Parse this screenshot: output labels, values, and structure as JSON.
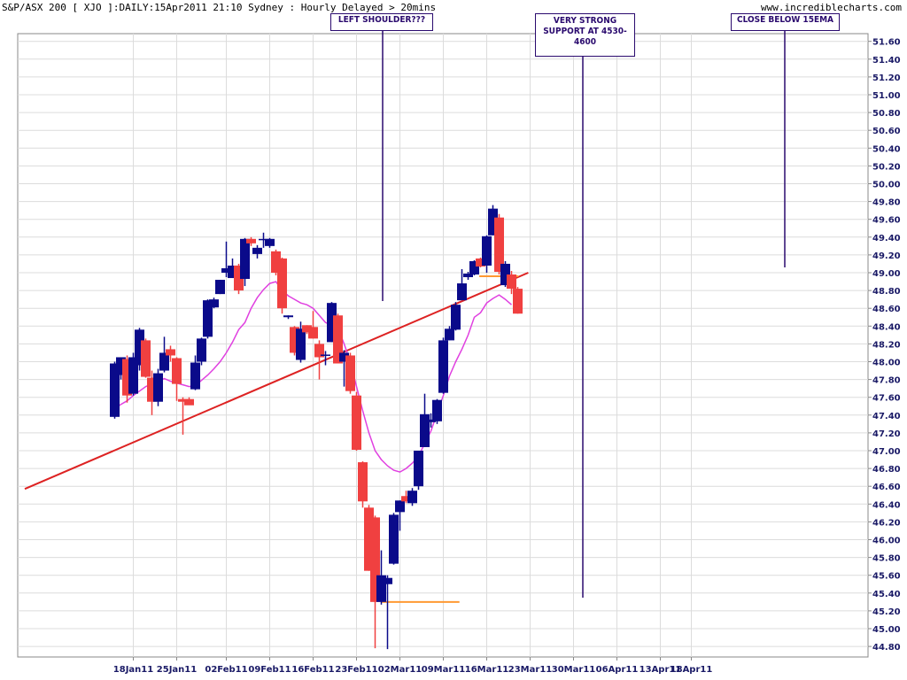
{
  "header": {
    "title": "S&P/ASX 200 [ XJO ]:DAILY:15Apr2011 21:10 Sydney : Hourly Delayed > 20mins",
    "site": "www.incrediblecharts.com"
  },
  "annotations": [
    {
      "id": "left-shoulder",
      "text": "LEFT SHOULDER???"
    },
    {
      "id": "support",
      "text": "VERY STRONG SUPPORT AT 4530-4600"
    },
    {
      "id": "close-below",
      "text": "CLOSE BELOW 15EMA"
    }
  ],
  "colors": {
    "up": "#0a0a8a",
    "down": "#f04040",
    "ema": "#e040e0",
    "trend": "#dd2222",
    "support": "#ff9933"
  },
  "chart_data": {
    "type": "candlestick",
    "title": "S&P/ASX 200 [ XJO ]:DAILY:15Apr2011 21:10 Sydney : Hourly Delayed > 20mins",
    "ylim": [
      44.7,
      51.7
    ],
    "y_ticks": [
      "51.60",
      "51.40",
      "51.20",
      "51.00",
      "50.80",
      "50.60",
      "50.40",
      "50.20",
      "50.00",
      "49.80",
      "49.60",
      "49.40",
      "49.20",
      "49.00",
      "48.80",
      "48.60",
      "48.40",
      "48.20",
      "48.00",
      "47.80",
      "47.60",
      "47.40",
      "47.20",
      "47.00",
      "46.80",
      "46.60",
      "46.40",
      "46.20",
      "46.00",
      "45.80",
      "45.60",
      "45.40",
      "45.20",
      "45.00",
      "44.80"
    ],
    "x_ticks": [
      {
        "label": "18Jan11",
        "day": 17
      },
      {
        "label": "25Jan11",
        "day": 24
      },
      {
        "label": "02Feb11",
        "day": 32
      },
      {
        "label": "09Feb11",
        "day": 39
      },
      {
        "label": "16Feb11",
        "day": 46
      },
      {
        "label": "23Feb11",
        "day": 53
      },
      {
        "label": "02Mar11",
        "day": 60
      },
      {
        "label": "09Mar11",
        "day": 67
      },
      {
        "label": "16Mar11",
        "day": 74
      },
      {
        "label": "23Mar11",
        "day": 81
      },
      {
        "label": "30Mar11",
        "day": 88
      },
      {
        "label": "06Apr11",
        "day": 95
      },
      {
        "label": "13Apr11",
        "day": 102
      },
      {
        "label": "18Apr11",
        "day": 107
      }
    ],
    "candles": [
      {
        "day": 14,
        "o": 47.38,
        "h": 48.0,
        "l": 47.36,
        "c": 47.98
      },
      {
        "day": 15,
        "o": 47.85,
        "h": 48.05,
        "l": 47.8,
        "c": 48.05
      },
      {
        "day": 16,
        "o": 48.03,
        "h": 48.07,
        "l": 47.54,
        "c": 47.62
      },
      {
        "day": 17,
        "o": 47.64,
        "h": 48.1,
        "l": 47.62,
        "c": 48.05
      },
      {
        "day": 18,
        "o": 47.96,
        "h": 48.38,
        "l": 47.9,
        "c": 48.36
      },
      {
        "day": 19,
        "o": 48.24,
        "h": 48.26,
        "l": 47.82,
        "c": 47.83
      },
      {
        "day": 20,
        "o": 47.82,
        "h": 47.9,
        "l": 47.4,
        "c": 47.55
      },
      {
        "day": 21,
        "o": 47.55,
        "h": 47.92,
        "l": 47.5,
        "c": 47.87
      },
      {
        "day": 22,
        "o": 47.9,
        "h": 48.28,
        "l": 47.88,
        "c": 48.1
      },
      {
        "day": 23,
        "o": 48.14,
        "h": 48.18,
        "l": 48.0,
        "c": 48.07
      },
      {
        "day": 24,
        "o": 48.04,
        "h": 48.05,
        "l": 47.56,
        "c": 47.75
      },
      {
        "day": 25,
        "o": 47.58,
        "h": 47.6,
        "l": 47.18,
        "c": 47.55
      },
      {
        "day": 26,
        "o": 47.58,
        "h": 47.6,
        "l": 47.52,
        "c": 47.51
      },
      {
        "day": 27,
        "o": 47.69,
        "h": 48.07,
        "l": 47.68,
        "c": 47.99
      },
      {
        "day": 28,
        "o": 48.0,
        "h": 48.27,
        "l": 47.96,
        "c": 48.26
      },
      {
        "day": 29,
        "o": 48.28,
        "h": 48.7,
        "l": 48.26,
        "c": 48.69
      },
      {
        "day": 30,
        "o": 48.61,
        "h": 48.72,
        "l": 48.6,
        "c": 48.7
      },
      {
        "day": 31,
        "o": 48.76,
        "h": 48.92,
        "l": 48.76,
        "c": 48.92
      },
      {
        "day": 32,
        "o": 49.0,
        "h": 49.35,
        "l": 48.95,
        "c": 49.05
      },
      {
        "day": 33,
        "o": 48.94,
        "h": 49.16,
        "l": 48.94,
        "c": 49.08
      },
      {
        "day": 34,
        "o": 49.08,
        "h": 49.1,
        "l": 48.76,
        "c": 48.8
      },
      {
        "day": 35,
        "o": 48.93,
        "h": 49.39,
        "l": 48.85,
        "c": 49.38
      },
      {
        "day": 36,
        "o": 49.38,
        "h": 49.4,
        "l": 49.3,
        "c": 49.33
      },
      {
        "day": 37,
        "o": 49.21,
        "h": 49.31,
        "l": 49.16,
        "c": 49.28
      },
      {
        "day": 38,
        "o": 49.37,
        "h": 49.45,
        "l": 49.28,
        "c": 49.38
      },
      {
        "day": 39,
        "o": 49.3,
        "h": 49.39,
        "l": 49.28,
        "c": 49.38
      },
      {
        "day": 40,
        "o": 49.24,
        "h": 49.26,
        "l": 48.97,
        "c": 49.0
      },
      {
        "day": 41,
        "o": 49.16,
        "h": 49.17,
        "l": 48.54,
        "c": 48.6
      },
      {
        "day": 42,
        "o": 48.5,
        "h": 48.52,
        "l": 48.48,
        "c": 48.52
      },
      {
        "day": 43,
        "o": 48.39,
        "h": 48.4,
        "l": 48.07,
        "c": 48.1
      },
      {
        "day": 44,
        "o": 48.02,
        "h": 48.45,
        "l": 47.99,
        "c": 48.37
      },
      {
        "day": 45,
        "o": 48.41,
        "h": 48.41,
        "l": 48.31,
        "c": 48.33
      },
      {
        "day": 46,
        "o": 48.39,
        "h": 48.57,
        "l": 48.26,
        "c": 48.26
      },
      {
        "day": 47,
        "o": 48.2,
        "h": 48.24,
        "l": 47.8,
        "c": 48.05
      },
      {
        "day": 48,
        "o": 48.08,
        "h": 48.12,
        "l": 47.96,
        "c": 48.08
      },
      {
        "day": 49,
        "o": 48.22,
        "h": 48.67,
        "l": 48.22,
        "c": 48.66
      },
      {
        "day": 50,
        "o": 48.52,
        "h": 48.54,
        "l": 47.98,
        "c": 47.98
      },
      {
        "day": 51,
        "o": 48.0,
        "h": 48.13,
        "l": 47.72,
        "c": 48.1
      },
      {
        "day": 52,
        "o": 48.07,
        "h": 48.1,
        "l": 47.64,
        "c": 47.67
      },
      {
        "day": 53,
        "o": 47.62,
        "h": 47.66,
        "l": 47.0,
        "c": 47.01
      },
      {
        "day": 54,
        "o": 46.87,
        "h": 46.88,
        "l": 46.36,
        "c": 46.43
      },
      {
        "day": 55,
        "o": 46.36,
        "h": 46.39,
        "l": 45.65,
        "c": 45.65
      },
      {
        "day": 56,
        "o": 46.25,
        "h": 46.27,
        "l": 44.78,
        "c": 45.3
      },
      {
        "day": 57,
        "o": 45.3,
        "h": 45.88,
        "l": 45.27,
        "c": 45.6
      },
      {
        "day": 58,
        "o": 45.5,
        "h": 45.6,
        "l": 44.77,
        "c": 45.57
      },
      {
        "day": 59,
        "o": 45.73,
        "h": 46.3,
        "l": 45.72,
        "c": 46.28
      },
      {
        "day": 60,
        "o": 46.31,
        "h": 46.44,
        "l": 46.1,
        "c": 46.44
      },
      {
        "day": 61,
        "o": 46.49,
        "h": 46.55,
        "l": 46.41,
        "c": 46.43
      },
      {
        "day": 62,
        "o": 46.41,
        "h": 46.58,
        "l": 46.38,
        "c": 46.55
      },
      {
        "day": 63,
        "o": 46.6,
        "h": 47.0,
        "l": 46.56,
        "c": 47.0
      },
      {
        "day": 64,
        "o": 47.04,
        "h": 47.64,
        "l": 47.04,
        "c": 47.41
      },
      {
        "day": 65,
        "o": 47.32,
        "h": 47.42,
        "l": 47.26,
        "c": 47.35
      },
      {
        "day": 66,
        "o": 47.33,
        "h": 47.58,
        "l": 47.3,
        "c": 47.57
      },
      {
        "day": 67,
        "o": 47.65,
        "h": 48.27,
        "l": 47.64,
        "c": 48.24
      },
      {
        "day": 68,
        "o": 48.24,
        "h": 48.4,
        "l": 48.24,
        "c": 48.37
      },
      {
        "day": 69,
        "o": 48.36,
        "h": 48.67,
        "l": 48.35,
        "c": 48.64
      },
      {
        "day": 70,
        "o": 48.69,
        "h": 49.04,
        "l": 48.7,
        "c": 48.88
      },
      {
        "day": 71,
        "o": 48.95,
        "h": 49.01,
        "l": 48.92,
        "c": 48.99
      },
      {
        "day": 72,
        "o": 48.98,
        "h": 49.14,
        "l": 48.97,
        "c": 49.13
      },
      {
        "day": 73,
        "o": 49.16,
        "h": 49.17,
        "l": 49.06,
        "c": 49.07
      },
      {
        "day": 74,
        "o": 49.08,
        "h": 49.42,
        "l": 49.0,
        "c": 49.41
      },
      {
        "day": 75,
        "o": 49.42,
        "h": 49.76,
        "l": 49.42,
        "c": 49.72
      },
      {
        "day": 76,
        "o": 49.62,
        "h": 49.66,
        "l": 48.98,
        "c": 49.01
      },
      {
        "day": 77,
        "o": 48.86,
        "h": 49.13,
        "l": 48.84,
        "c": 49.1
      },
      {
        "day": 78,
        "o": 48.98,
        "h": 49.02,
        "l": 48.76,
        "c": 48.82
      },
      {
        "day": 79,
        "o": 48.82,
        "h": 48.84,
        "l": 48.54,
        "c": 48.54
      }
    ],
    "ema_15": [
      [
        14,
        47.47
      ],
      [
        15,
        47.52
      ],
      [
        16,
        47.56
      ],
      [
        17,
        47.62
      ],
      [
        18,
        47.67
      ],
      [
        19,
        47.72
      ],
      [
        20,
        47.75
      ],
      [
        21,
        47.78
      ],
      [
        22,
        47.81
      ],
      [
        23,
        47.78
      ],
      [
        24,
        47.76
      ],
      [
        25,
        47.74
      ],
      [
        26,
        47.72
      ],
      [
        27,
        47.73
      ],
      [
        28,
        47.79
      ],
      [
        29,
        47.85
      ],
      [
        30,
        47.92
      ],
      [
        31,
        48.0
      ],
      [
        32,
        48.1
      ],
      [
        33,
        48.22
      ],
      [
        34,
        48.36
      ],
      [
        35,
        48.44
      ],
      [
        36,
        48.6
      ],
      [
        37,
        48.72
      ],
      [
        38,
        48.81
      ],
      [
        39,
        48.88
      ],
      [
        40,
        48.9
      ],
      [
        41,
        48.8
      ],
      [
        42,
        48.74
      ],
      [
        43,
        48.7
      ],
      [
        44,
        48.66
      ],
      [
        45,
        48.64
      ],
      [
        46,
        48.6
      ],
      [
        47,
        48.52
      ],
      [
        48,
        48.44
      ],
      [
        49,
        48.41
      ],
      [
        50,
        48.38
      ],
      [
        51,
        48.2
      ],
      [
        52,
        48.0
      ],
      [
        53,
        47.72
      ],
      [
        54,
        47.45
      ],
      [
        55,
        47.2
      ],
      [
        56,
        47.0
      ],
      [
        57,
        46.9
      ],
      [
        58,
        46.83
      ],
      [
        59,
        46.78
      ],
      [
        60,
        46.76
      ],
      [
        61,
        46.8
      ],
      [
        62,
        46.86
      ],
      [
        63,
        46.94
      ],
      [
        64,
        47.08
      ],
      [
        65,
        47.22
      ],
      [
        66,
        47.42
      ],
      [
        67,
        47.62
      ],
      [
        68,
        47.84
      ],
      [
        69,
        48.0
      ],
      [
        70,
        48.14
      ],
      [
        71,
        48.3
      ],
      [
        72,
        48.5
      ],
      [
        73,
        48.55
      ],
      [
        74,
        48.66
      ],
      [
        75,
        48.71
      ],
      [
        76,
        48.75
      ],
      [
        77,
        48.7
      ],
      [
        78,
        48.64
      ]
    ],
    "trendline": {
      "x_start": -0.5,
      "y_start": 46.57,
      "x_end": 80.7,
      "y_end": 49.0
    },
    "support_line": {
      "y": 45.3,
      "x_start": 56.9,
      "x_end": 69.6
    },
    "resistance_line": {
      "y": 48.96,
      "x_start": 72.8,
      "x_end": 79.1
    },
    "grid": true,
    "legend": "none"
  }
}
